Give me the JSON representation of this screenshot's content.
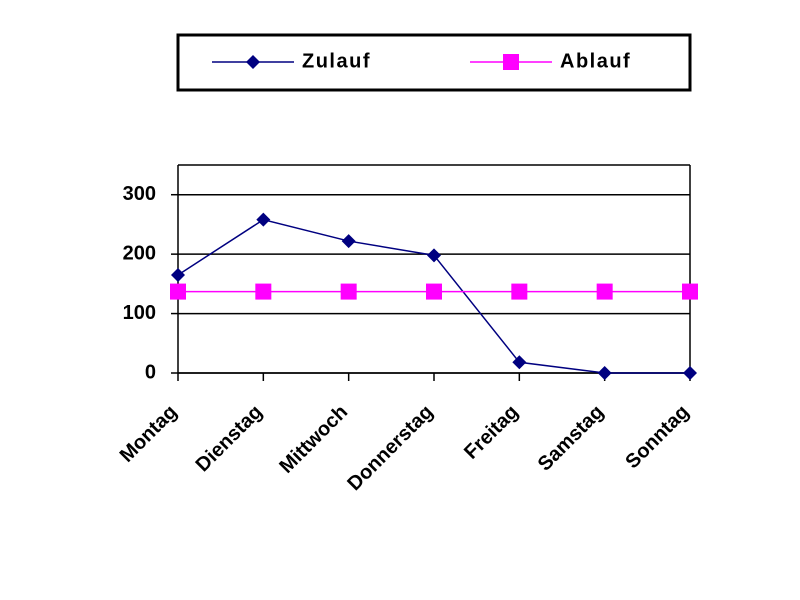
{
  "chart_data": {
    "type": "line",
    "categories": [
      "Montag",
      "Dienstag",
      "Mittwoch",
      "Donnerstag",
      "Freitag",
      "Samstag",
      "Sonntag"
    ],
    "series": [
      {
        "name": "Zulauf",
        "color": "#000080",
        "marker": "diamond",
        "values": [
          165,
          258,
          222,
          198,
          18,
          0,
          0
        ]
      },
      {
        "name": "Ablauf",
        "color": "#ff00ff",
        "marker": "square",
        "values": [
          137,
          137,
          137,
          137,
          137,
          137,
          137
        ]
      }
    ],
    "ylim": [
      0,
      350
    ],
    "yticks": [
      0,
      100,
      200,
      300
    ],
    "grid": true,
    "legend": "top"
  }
}
